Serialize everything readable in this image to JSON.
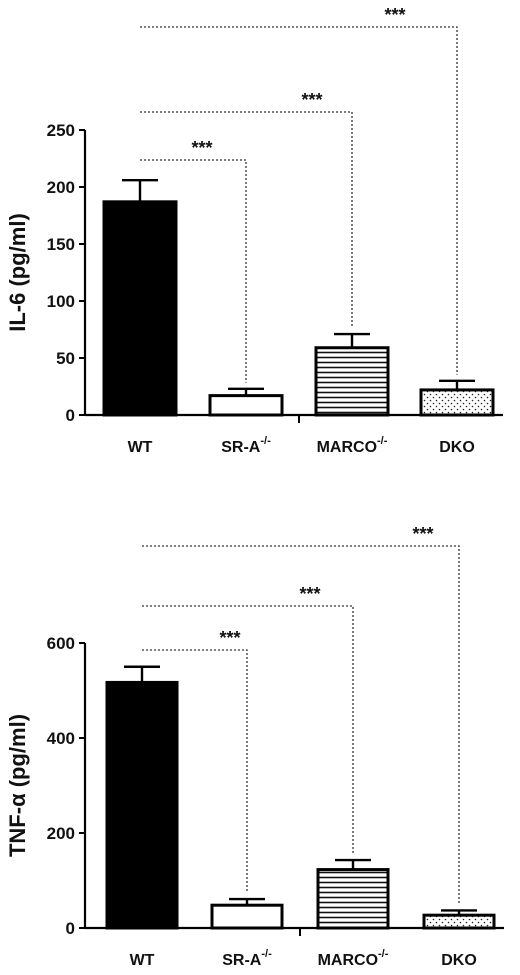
{
  "chart_data": [
    {
      "type": "bar",
      "ylabel": "IL-6 (pg/ml)",
      "ylim": [
        0,
        250
      ],
      "yticks": [
        0,
        50,
        100,
        150,
        200,
        250
      ],
      "categories": [
        {
          "name": "WT",
          "sup": ""
        },
        {
          "name": "SR-A",
          "sup": "-/-"
        },
        {
          "name": "MARCO",
          "sup": "-/-"
        },
        {
          "name": "DKO",
          "sup": ""
        }
      ],
      "values": [
        187,
        17,
        59,
        22
      ],
      "errors": [
        19,
        6,
        12,
        8
      ],
      "fills": [
        "black",
        "white",
        "hstripes",
        "dots"
      ],
      "significance": [
        {
          "from": 0,
          "to": 1,
          "label": "***"
        },
        {
          "from": 0,
          "to": 2,
          "label": "***"
        },
        {
          "from": 0,
          "to": 3,
          "label": "***"
        }
      ]
    },
    {
      "type": "bar",
      "ylabel": "TNF-α (pg/ml)",
      "ylim": [
        0,
        600
      ],
      "yticks": [
        0,
        200,
        400,
        600
      ],
      "categories": [
        {
          "name": "WT",
          "sup": ""
        },
        {
          "name": "SR-A",
          "sup": "-/-"
        },
        {
          "name": "MARCO",
          "sup": "-/-"
        },
        {
          "name": "DKO",
          "sup": ""
        }
      ],
      "values": [
        517,
        48,
        123,
        27
      ],
      "errors": [
        33,
        13,
        20,
        10
      ],
      "fills": [
        "black",
        "white",
        "hstripes",
        "dots"
      ],
      "significance": [
        {
          "from": 0,
          "to": 1,
          "label": "***"
        },
        {
          "from": 0,
          "to": 2,
          "label": "***"
        },
        {
          "from": 0,
          "to": 3,
          "label": "***"
        }
      ]
    }
  ]
}
